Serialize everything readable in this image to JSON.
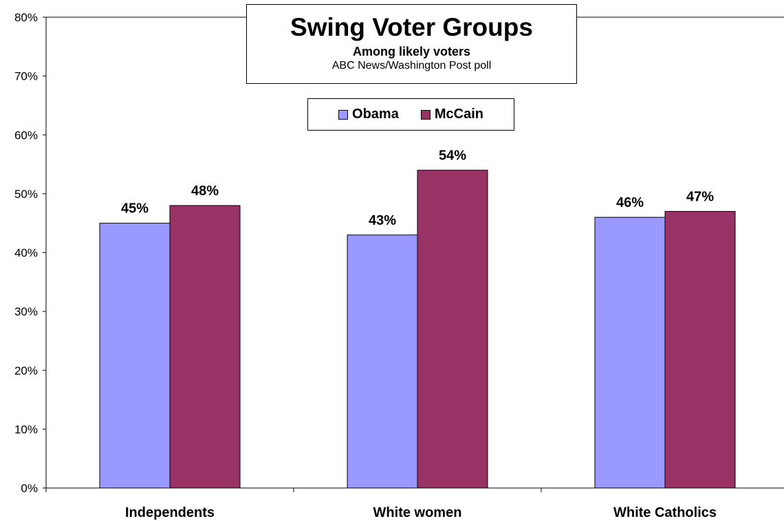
{
  "chart_data": {
    "type": "bar",
    "title": "Swing Voter Groups",
    "subtitle": "Among likely voters",
    "source": "ABC News/Washington Post poll",
    "categories": [
      "Independents",
      "White women",
      "White Catholics"
    ],
    "series": [
      {
        "name": "Obama",
        "values": [
          45,
          43,
          46
        ],
        "labels": [
          "45%",
          "43%",
          "46%"
        ],
        "color": "#9999ff"
      },
      {
        "name": "McCain",
        "values": [
          48,
          54,
          47
        ],
        "labels": [
          "48%",
          "54%",
          "47%"
        ],
        "color": "#993366"
      }
    ],
    "ylim": [
      0,
      80
    ],
    "yticks": [
      0,
      10,
      20,
      30,
      40,
      50,
      60,
      70,
      80
    ],
    "ytick_labels": [
      "0%",
      "10%",
      "20%",
      "30%",
      "40%",
      "50%",
      "60%",
      "70%",
      "80%"
    ],
    "xlabel": "",
    "ylabel": "",
    "grid": false,
    "legend_position": "top-center"
  }
}
